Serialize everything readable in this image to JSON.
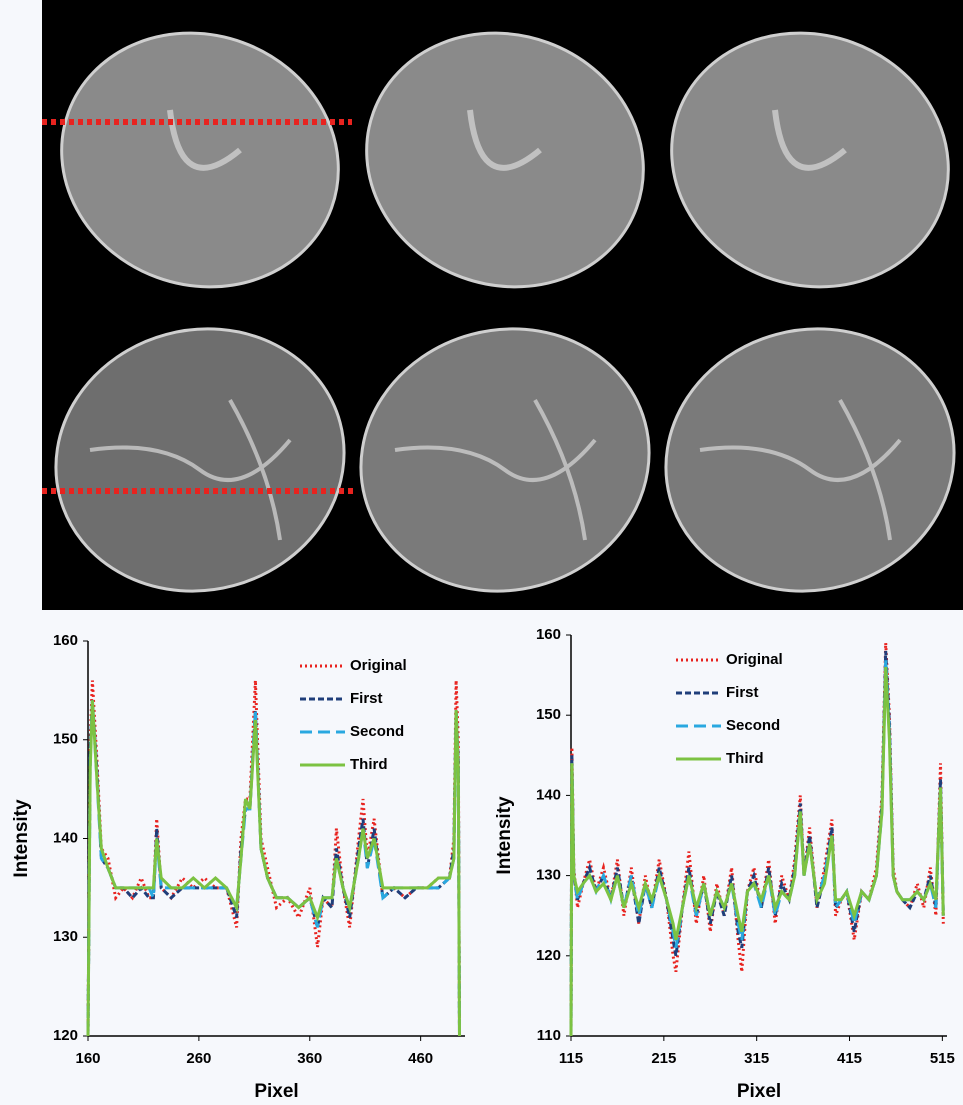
{
  "chart_data": [
    {
      "type": "line",
      "xlabel": "Pixel",
      "ylabel": "Intensity",
      "xlim": [
        160,
        500
      ],
      "xticks": [
        160,
        260,
        360,
        460
      ],
      "ylim": [
        120,
        160
      ],
      "yticks": [
        120,
        130,
        140,
        150,
        160
      ],
      "legend": "upper right",
      "x": [
        160,
        162,
        164,
        168,
        172,
        178,
        185,
        192,
        200,
        208,
        215,
        219,
        222,
        226,
        235,
        245,
        255,
        265,
        275,
        285,
        294,
        298,
        302,
        306,
        311,
        316,
        322,
        330,
        340,
        350,
        360,
        367,
        372,
        380,
        384,
        390,
        396,
        404,
        408,
        412,
        418,
        426,
        436,
        446,
        456,
        466,
        476,
        486,
        490,
        492,
        494,
        495
      ],
      "series": [
        {
          "name": "Original",
          "color": "#e8231f",
          "dash": "dotted",
          "values": [
            120,
            150,
            156,
            148,
            139,
            138,
            134,
            135,
            134,
            136,
            134,
            134,
            142,
            135,
            134,
            136,
            135,
            136,
            135,
            135,
            131,
            140,
            144,
            144,
            156,
            140,
            137,
            133,
            134,
            132,
            135,
            129,
            134,
            133,
            141,
            135,
            131,
            140,
            144,
            138,
            142,
            134,
            135,
            134,
            135,
            135,
            136,
            136,
            140,
            156,
            150,
            120
          ]
        },
        {
          "name": "First",
          "color": "#1f3e7a",
          "dash": "dashed",
          "values": [
            120,
            149,
            154,
            147,
            138,
            137,
            135,
            135,
            134,
            135,
            134,
            134,
            141,
            135,
            134,
            135,
            135,
            135,
            135,
            135,
            132,
            139,
            143,
            143,
            153,
            139,
            136,
            134,
            134,
            133,
            134,
            131,
            134,
            133,
            139,
            135,
            132,
            139,
            142,
            137,
            141,
            134,
            135,
            134,
            135,
            135,
            135,
            136,
            139,
            153,
            148,
            120
          ]
        },
        {
          "name": "Second",
          "color": "#29a8e0",
          "dash": "long-dashed",
          "values": [
            120,
            148,
            154,
            146,
            138,
            137,
            135,
            135,
            135,
            135,
            135,
            134,
            140,
            135,
            135,
            135,
            135,
            135,
            135,
            135,
            133,
            138,
            143,
            143,
            153,
            139,
            136,
            134,
            134,
            133,
            134,
            131,
            134,
            134,
            138,
            135,
            133,
            138,
            141,
            137,
            140,
            134,
            135,
            135,
            135,
            135,
            135,
            136,
            138,
            153,
            147,
            120
          ]
        },
        {
          "name": "Third",
          "color": "#7cc242",
          "dash": "solid",
          "values": [
            120,
            147,
            154,
            146,
            139,
            137,
            135,
            135,
            135,
            135,
            135,
            135,
            140,
            136,
            135,
            135,
            136,
            135,
            136,
            135,
            133,
            138,
            144,
            143,
            152,
            139,
            136,
            134,
            134,
            133,
            134,
            132,
            134,
            134,
            138,
            135,
            133,
            138,
            141,
            138,
            140,
            135,
            135,
            135,
            135,
            135,
            136,
            136,
            138,
            153,
            147,
            120
          ]
        }
      ]
    },
    {
      "type": "line",
      "xlabel": "Pixel",
      "ylabel": "Intensity",
      "xlim": [
        115,
        520
      ],
      "xticks": [
        115,
        215,
        315,
        415,
        515
      ],
      "ylim": [
        110,
        160
      ],
      "yticks": [
        110,
        120,
        130,
        140,
        150,
        160
      ],
      "legend": "upper center",
      "x": [
        115,
        116,
        118,
        122,
        128,
        135,
        142,
        150,
        158,
        165,
        172,
        180,
        188,
        195,
        202,
        210,
        218,
        225,
        228,
        235,
        242,
        250,
        258,
        265,
        272,
        280,
        288,
        295,
        299,
        305,
        312,
        320,
        328,
        335,
        342,
        350,
        356,
        362,
        366,
        372,
        380,
        388,
        396,
        400,
        406,
        412,
        420,
        428,
        436,
        444,
        450,
        454,
        458,
        462,
        466,
        472,
        480,
        488,
        495,
        502,
        508,
        513,
        516
      ],
      "series": [
        {
          "name": "Original",
          "color": "#e8231f",
          "dash": "dotted",
          "values": [
            110,
            146,
            131,
            126,
            129,
            132,
            128,
            131,
            127,
            132,
            125,
            131,
            124,
            130,
            126,
            132,
            127,
            120,
            118,
            126,
            133,
            124,
            130,
            123,
            129,
            125,
            131,
            122,
            118,
            128,
            131,
            126,
            132,
            124,
            130,
            127,
            132,
            140,
            130,
            136,
            126,
            131,
            137,
            125,
            127,
            128,
            122,
            128,
            127,
            131,
            140,
            159,
            150,
            131,
            128,
            127,
            126,
            129,
            126,
            131,
            125,
            144,
            124
          ]
        },
        {
          "name": "First",
          "color": "#1f3e7a",
          "dash": "dashed",
          "values": [
            110,
            145,
            130,
            127,
            129,
            131,
            128,
            130,
            127,
            131,
            126,
            130,
            124,
            129,
            126,
            131,
            127,
            122,
            120,
            126,
            131,
            125,
            129,
            124,
            128,
            125,
            130,
            123,
            121,
            128,
            130,
            126,
            131,
            125,
            129,
            127,
            131,
            139,
            130,
            135,
            126,
            130,
            136,
            126,
            127,
            128,
            123,
            128,
            127,
            130,
            139,
            158,
            149,
            130,
            128,
            127,
            126,
            128,
            127,
            130,
            126,
            142,
            125
          ]
        },
        {
          "name": "Second",
          "color": "#29a8e0",
          "dash": "long-dashed",
          "values": [
            110,
            144,
            130,
            127,
            129,
            130,
            128,
            130,
            127,
            130,
            126,
            130,
            125,
            129,
            126,
            130,
            127,
            123,
            121,
            126,
            130,
            125,
            129,
            125,
            128,
            126,
            129,
            124,
            122,
            128,
            129,
            126,
            130,
            125,
            128,
            127,
            130,
            138,
            130,
            134,
            127,
            130,
            135,
            126,
            127,
            128,
            124,
            128,
            127,
            130,
            138,
            157,
            148,
            130,
            128,
            127,
            127,
            128,
            127,
            129,
            126,
            141,
            125
          ]
        },
        {
          "name": "Third",
          "color": "#7cc242",
          "dash": "solid",
          "values": [
            110,
            144,
            130,
            128,
            129,
            130,
            128,
            129,
            127,
            130,
            126,
            129,
            126,
            129,
            127,
            130,
            127,
            124,
            122,
            126,
            130,
            126,
            129,
            125,
            128,
            126,
            129,
            125,
            123,
            128,
            129,
            127,
            130,
            126,
            128,
            127,
            130,
            138,
            130,
            134,
            127,
            129,
            135,
            127,
            127,
            128,
            125,
            128,
            127,
            130,
            138,
            156,
            147,
            130,
            128,
            127,
            127,
            128,
            127,
            129,
            127,
            141,
            125
          ]
        }
      ]
    }
  ]
}
